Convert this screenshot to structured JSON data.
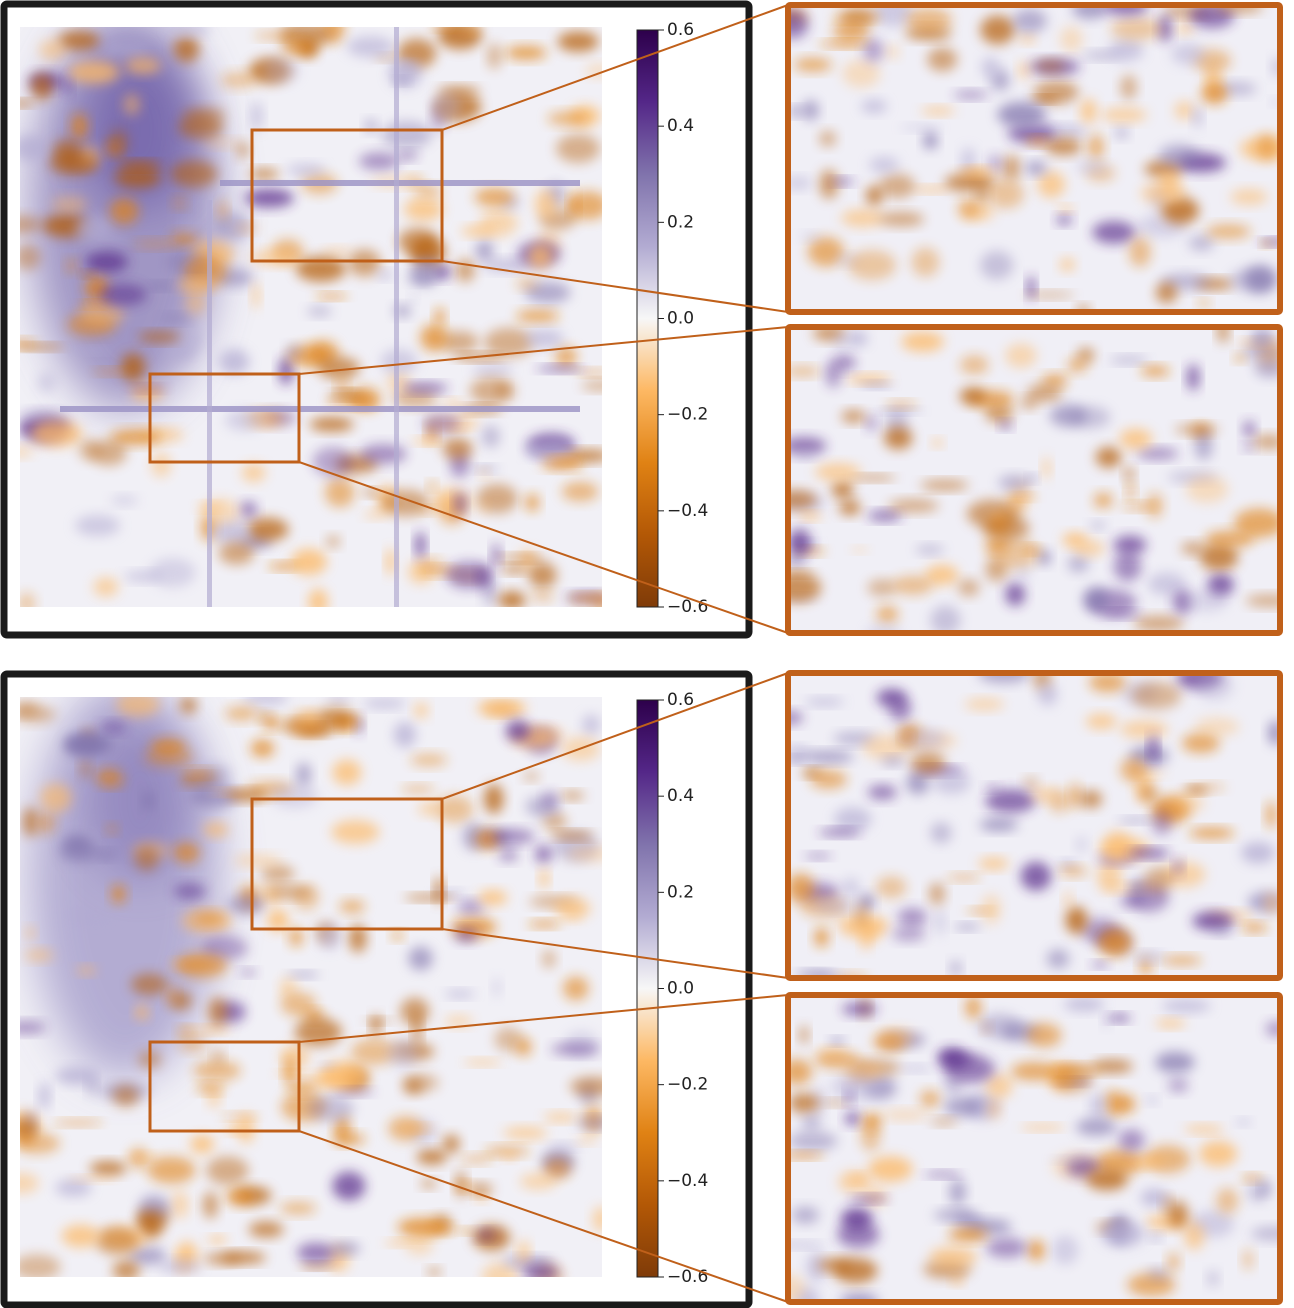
{
  "chart_data": [
    {
      "type": "heatmap",
      "ylim": [
        -0.6,
        0.6
      ],
      "yticks": [
        0.6,
        0.4,
        0.2,
        {
          "value": 0,
          "label": "0.0"
        },
        {
          "value": -0.2,
          "label": "−0.2"
        },
        {
          "value": -0.4,
          "label": "−0.4"
        },
        {
          "value": -0.6,
          "label": "−0.6"
        }
      ],
      "colors": [
        "#7f3b08",
        "#b35806",
        "#e08214",
        "#fdb863",
        "#f7f7f7",
        "#b2abd2",
        "#8073ac",
        "#542788",
        "#2d004b"
      ]
    },
    {
      "type": "heatmap",
      "ylim": [
        -0.6,
        0.6
      ],
      "yticks": [
        0.6,
        0.4,
        0.2,
        {
          "value": 0,
          "label": "0.0"
        },
        {
          "value": -0.2,
          "label": "−0.2"
        },
        {
          "value": -0.4,
          "label": "−0.4"
        },
        {
          "value": -0.6,
          "label": "−0.6"
        }
      ],
      "colors": [
        "#7f3b08",
        "#b35806",
        "#e08214",
        "#fdb863",
        "#f7f7f7",
        "#b2abd2",
        "#8073ac",
        "#542788",
        "#2d004b"
      ]
    }
  ]
}
